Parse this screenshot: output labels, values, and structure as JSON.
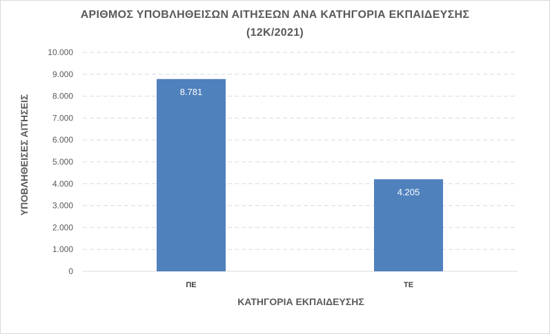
{
  "chart_data": {
    "type": "bar",
    "title": "ΑΡΙΘΜΟΣ ΥΠΟΒΛΗΘΕΙΣΩΝ ΑΙΤΗΣΕΩΝ ΑΝΑ ΚΑΤΗΓΟΡΙΑ ΕΚΠΑΙΔΕΥΣΗΣ",
    "subtitle": "(12Κ/2021)",
    "xlabel": "ΚΑΤΗΓΟΡΙΑ ΕΚΠΑΙΔΕΥΣΗΣ",
    "ylabel": "ΥΠΟΒΛΗΘΕΙΣΕΣ ΑΙΤΗΣΕΙΣ",
    "categories": [
      "ΠΕ",
      "ΤΕ"
    ],
    "values": [
      8781,
      4205
    ],
    "value_labels": [
      "8.781",
      "4.205"
    ],
    "ylim": [
      0,
      10000
    ],
    "yticks": [
      0,
      1000,
      2000,
      3000,
      4000,
      5000,
      6000,
      7000,
      8000,
      9000,
      10000
    ],
    "ytick_labels": [
      "0",
      "1.000",
      "2.000",
      "3.000",
      "4.000",
      "5.000",
      "6.000",
      "7.000",
      "8.000",
      "9.000",
      "10.000"
    ],
    "grid": true,
    "grid_style": "dashed",
    "bar_color": "#4f81bd",
    "grid_color": "#d9d9d9"
  }
}
